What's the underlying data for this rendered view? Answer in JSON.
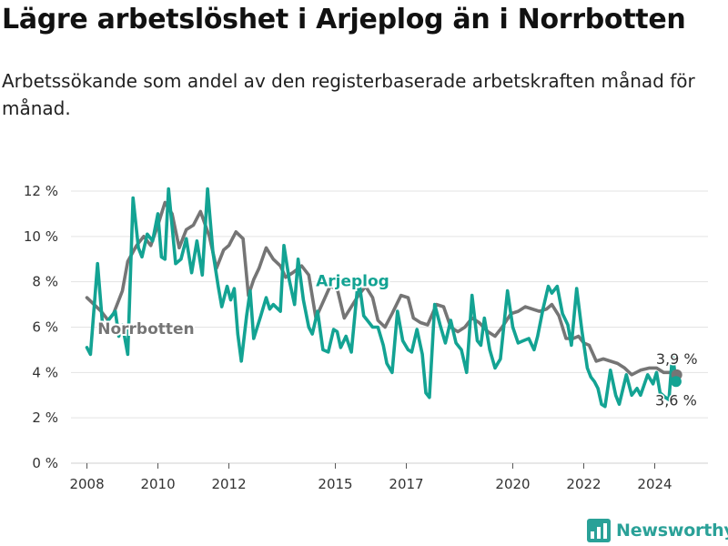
{
  "header": {
    "title": "Lägre arbetslöshet i Arjeplog än i Norrbotten",
    "subtitle": "Arbetssökande som andel av den registerbaserade arbetskraften månad för månad."
  },
  "brand": {
    "name": "Newsworthy",
    "icon": "newsworthy-logo-icon",
    "color": "#2aa198"
  },
  "chart_data": {
    "type": "line",
    "title": "Lägre arbetslöshet i Arjeplog än i Norrbotten",
    "subtitle": "Arbetssökande som andel av den registerbaserade arbetskraften månad för månad.",
    "xlabel": "",
    "ylabel": "",
    "x_unit": "year (monthly data)",
    "xlim": [
      2007.55,
      2025.5
    ],
    "ylim": [
      0,
      12
    ],
    "y_ticks": [
      0,
      2,
      4,
      6,
      8,
      10,
      12
    ],
    "y_tick_labels": [
      "0 %",
      "2 %",
      "4 %",
      "6 %",
      "8 %",
      "10 %",
      "12 %"
    ],
    "x_ticks": [
      2008,
      2010,
      2012,
      2015,
      2017,
      2020,
      2022,
      2024
    ],
    "x_tick_labels": [
      "2008",
      "2010",
      "2012",
      "2015",
      "2017",
      "2020",
      "2022",
      "2024"
    ],
    "grid": true,
    "legend": "inline labels",
    "series": [
      {
        "name": "Norrbotten",
        "color": "#757575",
        "label_at": [
          2008.3,
          5.7
        ],
        "end_label": "3,9 %",
        "points": [
          [
            2008.0,
            7.3
          ],
          [
            2008.2,
            7.0
          ],
          [
            2008.4,
            6.7
          ],
          [
            2008.6,
            6.3
          ],
          [
            2008.75,
            6.6
          ],
          [
            2009.0,
            7.6
          ],
          [
            2009.15,
            8.9
          ],
          [
            2009.4,
            9.6
          ],
          [
            2009.6,
            10.0
          ],
          [
            2009.8,
            9.6
          ],
          [
            2010.0,
            10.5
          ],
          [
            2010.2,
            11.5
          ],
          [
            2010.4,
            11.0
          ],
          [
            2010.6,
            9.5
          ],
          [
            2010.8,
            10.3
          ],
          [
            2011.0,
            10.5
          ],
          [
            2011.2,
            11.1
          ],
          [
            2011.45,
            10.0
          ],
          [
            2011.65,
            8.6
          ],
          [
            2011.85,
            9.4
          ],
          [
            2012.0,
            9.6
          ],
          [
            2012.2,
            10.2
          ],
          [
            2012.4,
            9.9
          ],
          [
            2012.55,
            7.4
          ],
          [
            2012.7,
            8.1
          ],
          [
            2012.85,
            8.6
          ],
          [
            2013.05,
            9.5
          ],
          [
            2013.25,
            9.0
          ],
          [
            2013.45,
            8.7
          ],
          [
            2013.6,
            8.2
          ],
          [
            2013.8,
            8.4
          ],
          [
            2014.05,
            8.7
          ],
          [
            2014.25,
            8.3
          ],
          [
            2014.45,
            6.4
          ],
          [
            2014.65,
            7.1
          ],
          [
            2014.85,
            7.8
          ],
          [
            2015.05,
            7.7
          ],
          [
            2015.25,
            6.4
          ],
          [
            2015.45,
            6.9
          ],
          [
            2015.65,
            7.4
          ],
          [
            2015.85,
            7.8
          ],
          [
            2016.05,
            7.3
          ],
          [
            2016.2,
            6.3
          ],
          [
            2016.4,
            6.0
          ],
          [
            2016.6,
            6.6
          ],
          [
            2016.85,
            7.4
          ],
          [
            2017.05,
            7.3
          ],
          [
            2017.2,
            6.4
          ],
          [
            2017.4,
            6.2
          ],
          [
            2017.6,
            6.1
          ],
          [
            2017.85,
            7.0
          ],
          [
            2018.05,
            6.9
          ],
          [
            2018.25,
            6.0
          ],
          [
            2018.45,
            5.8
          ],
          [
            2018.65,
            6.0
          ],
          [
            2018.85,
            6.4
          ],
          [
            2019.05,
            6.2
          ],
          [
            2019.3,
            5.8
          ],
          [
            2019.5,
            5.6
          ],
          [
            2019.7,
            6.0
          ],
          [
            2019.95,
            6.6
          ],
          [
            2020.15,
            6.7
          ],
          [
            2020.35,
            6.9
          ],
          [
            2020.55,
            6.8
          ],
          [
            2020.75,
            6.7
          ],
          [
            2020.95,
            6.8
          ],
          [
            2021.1,
            7.0
          ],
          [
            2021.3,
            6.5
          ],
          [
            2021.5,
            5.5
          ],
          [
            2021.7,
            5.5
          ],
          [
            2021.85,
            5.6
          ],
          [
            2022.0,
            5.3
          ],
          [
            2022.15,
            5.2
          ],
          [
            2022.35,
            4.5
          ],
          [
            2022.55,
            4.6
          ],
          [
            2022.75,
            4.5
          ],
          [
            2022.95,
            4.4
          ],
          [
            2023.15,
            4.2
          ],
          [
            2023.35,
            3.9
          ],
          [
            2023.6,
            4.1
          ],
          [
            2023.85,
            4.2
          ],
          [
            2024.05,
            4.2
          ],
          [
            2024.25,
            4.0
          ],
          [
            2024.45,
            4.0
          ],
          [
            2024.62,
            3.9
          ]
        ]
      },
      {
        "name": "Arjeplog",
        "color": "#13a393",
        "label_at": [
          2014.45,
          7.8
        ],
        "end_label": "3,6 %",
        "points": [
          [
            2008.0,
            5.1
          ],
          [
            2008.1,
            4.8
          ],
          [
            2008.3,
            8.8
          ],
          [
            2008.45,
            5.9
          ],
          [
            2008.6,
            6.3
          ],
          [
            2008.8,
            6.7
          ],
          [
            2008.9,
            5.6
          ],
          [
            2009.0,
            6.1
          ],
          [
            2009.15,
            4.8
          ],
          [
            2009.3,
            11.7
          ],
          [
            2009.45,
            9.5
          ],
          [
            2009.55,
            9.1
          ],
          [
            2009.7,
            10.1
          ],
          [
            2009.85,
            9.8
          ],
          [
            2010.0,
            11.0
          ],
          [
            2010.1,
            9.1
          ],
          [
            2010.2,
            9.0
          ],
          [
            2010.3,
            12.1
          ],
          [
            2010.5,
            8.8
          ],
          [
            2010.65,
            9.0
          ],
          [
            2010.8,
            9.9
          ],
          [
            2010.95,
            8.4
          ],
          [
            2011.1,
            9.8
          ],
          [
            2011.25,
            8.3
          ],
          [
            2011.4,
            12.1
          ],
          [
            2011.55,
            9.3
          ],
          [
            2011.7,
            7.8
          ],
          [
            2011.8,
            6.9
          ],
          [
            2011.95,
            7.8
          ],
          [
            2012.05,
            7.2
          ],
          [
            2012.15,
            7.7
          ],
          [
            2012.25,
            5.7
          ],
          [
            2012.35,
            4.5
          ],
          [
            2012.5,
            6.5
          ],
          [
            2012.6,
            7.6
          ],
          [
            2012.7,
            5.5
          ],
          [
            2012.9,
            6.5
          ],
          [
            2013.05,
            7.3
          ],
          [
            2013.15,
            6.8
          ],
          [
            2013.25,
            7.0
          ],
          [
            2013.45,
            6.7
          ],
          [
            2013.55,
            9.6
          ],
          [
            2013.7,
            8.1
          ],
          [
            2013.85,
            7.0
          ],
          [
            2013.95,
            9.0
          ],
          [
            2014.1,
            7.2
          ],
          [
            2014.25,
            6.0
          ],
          [
            2014.35,
            5.7
          ],
          [
            2014.5,
            6.7
          ],
          [
            2014.65,
            5.0
          ],
          [
            2014.8,
            4.9
          ],
          [
            2014.95,
            5.9
          ],
          [
            2015.05,
            5.8
          ],
          [
            2015.15,
            5.1
          ],
          [
            2015.3,
            5.6
          ],
          [
            2015.45,
            4.9
          ],
          [
            2015.65,
            8.2
          ],
          [
            2015.8,
            6.5
          ],
          [
            2015.95,
            6.2
          ],
          [
            2016.05,
            6.0
          ],
          [
            2016.2,
            6.0
          ],
          [
            2016.35,
            5.2
          ],
          [
            2016.45,
            4.4
          ],
          [
            2016.6,
            4.0
          ],
          [
            2016.75,
            6.7
          ],
          [
            2016.9,
            5.4
          ],
          [
            2017.05,
            5.0
          ],
          [
            2017.15,
            4.9
          ],
          [
            2017.3,
            5.9
          ],
          [
            2017.45,
            4.8
          ],
          [
            2017.55,
            3.1
          ],
          [
            2017.65,
            2.9
          ],
          [
            2017.8,
            7.0
          ],
          [
            2017.95,
            6.1
          ],
          [
            2018.1,
            5.3
          ],
          [
            2018.25,
            6.3
          ],
          [
            2018.4,
            5.3
          ],
          [
            2018.55,
            5.0
          ],
          [
            2018.7,
            4.0
          ],
          [
            2018.85,
            7.4
          ],
          [
            2019.0,
            5.4
          ],
          [
            2019.1,
            5.2
          ],
          [
            2019.2,
            6.4
          ],
          [
            2019.35,
            5.0
          ],
          [
            2019.5,
            4.2
          ],
          [
            2019.65,
            4.6
          ],
          [
            2019.85,
            7.6
          ],
          [
            2020.0,
            6.0
          ],
          [
            2020.15,
            5.3
          ],
          [
            2020.3,
            5.4
          ],
          [
            2020.45,
            5.5
          ],
          [
            2020.6,
            5.0
          ],
          [
            2020.7,
            5.6
          ],
          [
            2020.85,
            6.8
          ],
          [
            2021.0,
            7.8
          ],
          [
            2021.1,
            7.5
          ],
          [
            2021.25,
            7.8
          ],
          [
            2021.4,
            6.6
          ],
          [
            2021.55,
            6.1
          ],
          [
            2021.65,
            5.2
          ],
          [
            2021.8,
            7.7
          ],
          [
            2021.95,
            5.8
          ],
          [
            2022.1,
            4.2
          ],
          [
            2022.2,
            3.8
          ],
          [
            2022.3,
            3.6
          ],
          [
            2022.4,
            3.3
          ],
          [
            2022.5,
            2.6
          ],
          [
            2022.6,
            2.5
          ],
          [
            2022.75,
            4.1
          ],
          [
            2022.9,
            3.0
          ],
          [
            2023.0,
            2.6
          ],
          [
            2023.2,
            3.9
          ],
          [
            2023.35,
            3.0
          ],
          [
            2023.5,
            3.3
          ],
          [
            2023.6,
            3.0
          ],
          [
            2023.8,
            3.9
          ],
          [
            2023.95,
            3.5
          ],
          [
            2024.05,
            4.0
          ],
          [
            2024.15,
            3.1
          ],
          [
            2024.3,
            2.9
          ],
          [
            2024.4,
            2.8
          ],
          [
            2024.5,
            4.8
          ],
          [
            2024.6,
            3.6
          ]
        ]
      }
    ]
  }
}
